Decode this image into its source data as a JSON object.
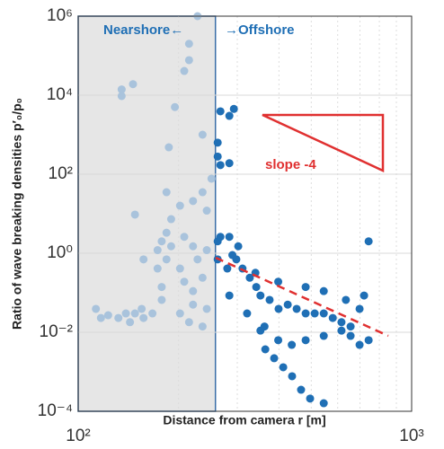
{
  "chart_data": {
    "type": "scatter",
    "xlabel": "Distance from camera r [m]",
    "ylabel": "Ratio of wave breaking densities p′₀/p₀",
    "log_x": true,
    "log_y": true,
    "grid": true,
    "xlim": [
      100,
      1000
    ],
    "ylim": [
      0.0001,
      1000000
    ],
    "xticks": [
      {
        "value": 100,
        "label": "10²"
      },
      {
        "value": 1000,
        "label": "10³"
      }
    ],
    "yticks": [
      {
        "value": 0.0001,
        "label": "10⁻⁴"
      },
      {
        "value": 0.01,
        "label": "10⁻²"
      },
      {
        "value": 1,
        "label": "10⁰"
      },
      {
        "value": 100,
        "label": "10²"
      },
      {
        "value": 10000,
        "label": "10⁴"
      },
      {
        "value": 1000000,
        "label": "10⁶"
      }
    ],
    "region_x": [
      100,
      258
    ],
    "annotations": [
      "Nearshore←",
      "→Offshore",
      "slope -4"
    ],
    "series": [
      {
        "color": "#a9c3dc",
        "x": [
          228,
          215,
          215,
          208,
          135,
          135,
          146,
          195,
          236,
          187,
          251,
          236,
          184,
          221,
          202,
          148,
          190,
          243,
          184,
          178,
          173,
          190,
          221,
          208,
          157,
          184,
          173,
          202,
          208,
          178,
          221,
          178,
          236,
          228,
          243,
          113,
          117,
          123,
          132,
          139,
          148,
          155,
          143,
          157,
          167,
          202,
          215,
          236,
          243,
          221
        ],
        "values": [
          1000000,
          200000,
          77000,
          41000,
          14000,
          9500,
          19000,
          5000,
          1000,
          480,
          77,
          35,
          35,
          21,
          16,
          9.5,
          7.3,
          12,
          3.3,
          2,
          1.2,
          1.5,
          1.5,
          2.6,
          0.7,
          0.7,
          0.41,
          0.41,
          0.19,
          0.14,
          0.11,
          0.066,
          0.24,
          0.7,
          1.2,
          0.039,
          0.023,
          0.027,
          0.023,
          0.03,
          0.03,
          0.039,
          0.018,
          0.023,
          0.03,
          0.03,
          0.018,
          0.014,
          0.039,
          0.05
        ]
      },
      {
        "color": "#1f6fb5",
        "x": [
          267,
          293,
          284,
          262,
          262,
          267,
          284,
          262,
          267,
          284,
          302,
          262,
          280,
          290,
          311,
          327,
          342,
          352,
          375,
          399,
          425,
          452,
          481,
          512,
          545,
          580,
          616,
          656,
          698,
          720,
          298,
          340,
          398,
          481,
          545,
          635,
          743,
          284,
          321,
          352,
          364,
          387,
          412,
          438,
          466,
          496,
          545,
          362,
          398,
          437,
          481,
          545,
          616,
          656,
          698,
          743
        ],
        "values": [
          3900,
          4500,
          3000,
          630,
          280,
          170,
          190,
          2,
          2.6,
          2.6,
          1.5,
          0.7,
          0.41,
          0.9,
          0.41,
          0.24,
          0.14,
          0.085,
          0.066,
          0.039,
          0.05,
          0.039,
          0.03,
          0.03,
          0.03,
          0.023,
          0.018,
          0.014,
          0.039,
          0.085,
          0.7,
          0.32,
          0.19,
          0.14,
          0.11,
          0.066,
          2,
          0.085,
          0.03,
          0.011,
          0.0037,
          0.0022,
          0.0013,
          0.00077,
          0.00035,
          0.00021,
          0.00016,
          0.014,
          0.0063,
          0.0048,
          0.0063,
          0.0081,
          0.011,
          0.0081,
          0.0048,
          0.0063
        ]
      }
    ]
  }
}
